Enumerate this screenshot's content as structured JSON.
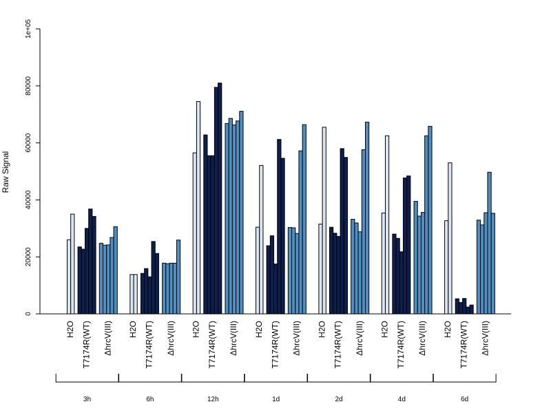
{
  "chart_data": {
    "type": "bar",
    "title": "",
    "ylabel": "Raw Signal",
    "xlabel": "",
    "ylim": [
      0,
      100000
    ],
    "yticks": [
      0,
      20000,
      40000,
      60000,
      80000,
      100000
    ],
    "ytick_labels": [
      "0",
      "20000",
      "40000",
      "60000",
      "80000",
      "1e+05"
    ],
    "grid": false,
    "legend": "none",
    "colors": {
      "H2O": "#dce6f2",
      "T7174R(WT)": "#0c1f4d",
      "ΔhrcV(III)": "#4f8fc2",
      "border": "#000000"
    },
    "groups": [
      {
        "label": "3h",
        "conditions": [
          {
            "name": "H2O",
            "values": [
              26000,
              35000
            ]
          },
          {
            "name": "T7174R(WT)",
            "values": [
              23500,
              22700,
              30000,
              36800,
              34200
            ]
          },
          {
            "name": "ΔhrcV(III)",
            "values": [
              24800,
              24100,
              24200,
              26800,
              30600
            ]
          }
        ]
      },
      {
        "label": "6h",
        "conditions": [
          {
            "name": "H2O",
            "values": [
              13800,
              13800
            ]
          },
          {
            "name": "T7174R(WT)",
            "values": [
              14200,
              15900,
              13000,
              25400,
              21200
            ]
          },
          {
            "name": "ΔhrcV(III)",
            "values": [
              17800,
              17600,
              17800,
              17800,
              25900
            ]
          }
        ]
      },
      {
        "label": "12h",
        "conditions": [
          {
            "name": "H2O",
            "values": [
              56500,
              74500
            ]
          },
          {
            "name": "T7174R(WT)",
            "values": [
              62800,
              55500,
              55500,
              79500,
              81000
            ]
          },
          {
            "name": "ΔhrcV(III)",
            "values": [
              66800,
              68600,
              66300,
              67700,
              71100
            ]
          }
        ]
      },
      {
        "label": "1d",
        "conditions": [
          {
            "name": "H2O",
            "values": [
              30400,
              52100
            ]
          },
          {
            "name": "T7174R(WT)",
            "values": [
              23900,
              27400,
              17500,
              61200,
              54600
            ]
          },
          {
            "name": "ΔhrcV(III)",
            "values": [
              30300,
              30200,
              28200,
              57200,
              66400
            ]
          }
        ]
      },
      {
        "label": "2d",
        "conditions": [
          {
            "name": "H2O",
            "values": [
              31500,
              65500
            ]
          },
          {
            "name": "T7174R(WT)",
            "values": [
              30400,
              28300,
              27200,
              58000,
              54900
            ]
          },
          {
            "name": "ΔhrcV(III)",
            "values": [
              33200,
              31900,
              28800,
              57600,
              67300
            ]
          }
        ]
      },
      {
        "label": "4d",
        "conditions": [
          {
            "name": "H2O",
            "values": [
              35400,
              62500
            ]
          },
          {
            "name": "T7174R(WT)",
            "values": [
              28000,
              26500,
              21800,
              47700,
              48400
            ]
          },
          {
            "name": "ΔhrcV(III)",
            "values": [
              39500,
              34300,
              35600,
              62500,
              65800
            ]
          }
        ]
      },
      {
        "label": "6d",
        "conditions": [
          {
            "name": "H2O",
            "values": [
              32700,
              53000
            ]
          },
          {
            "name": "T7174R(WT)",
            "values": [
              5300,
              4000,
              5400,
              2400,
              3100
            ]
          },
          {
            "name": "ΔhrcV(III)",
            "values": [
              32900,
              31200,
              35500,
              49700,
              35300
            ]
          }
        ]
      }
    ]
  }
}
